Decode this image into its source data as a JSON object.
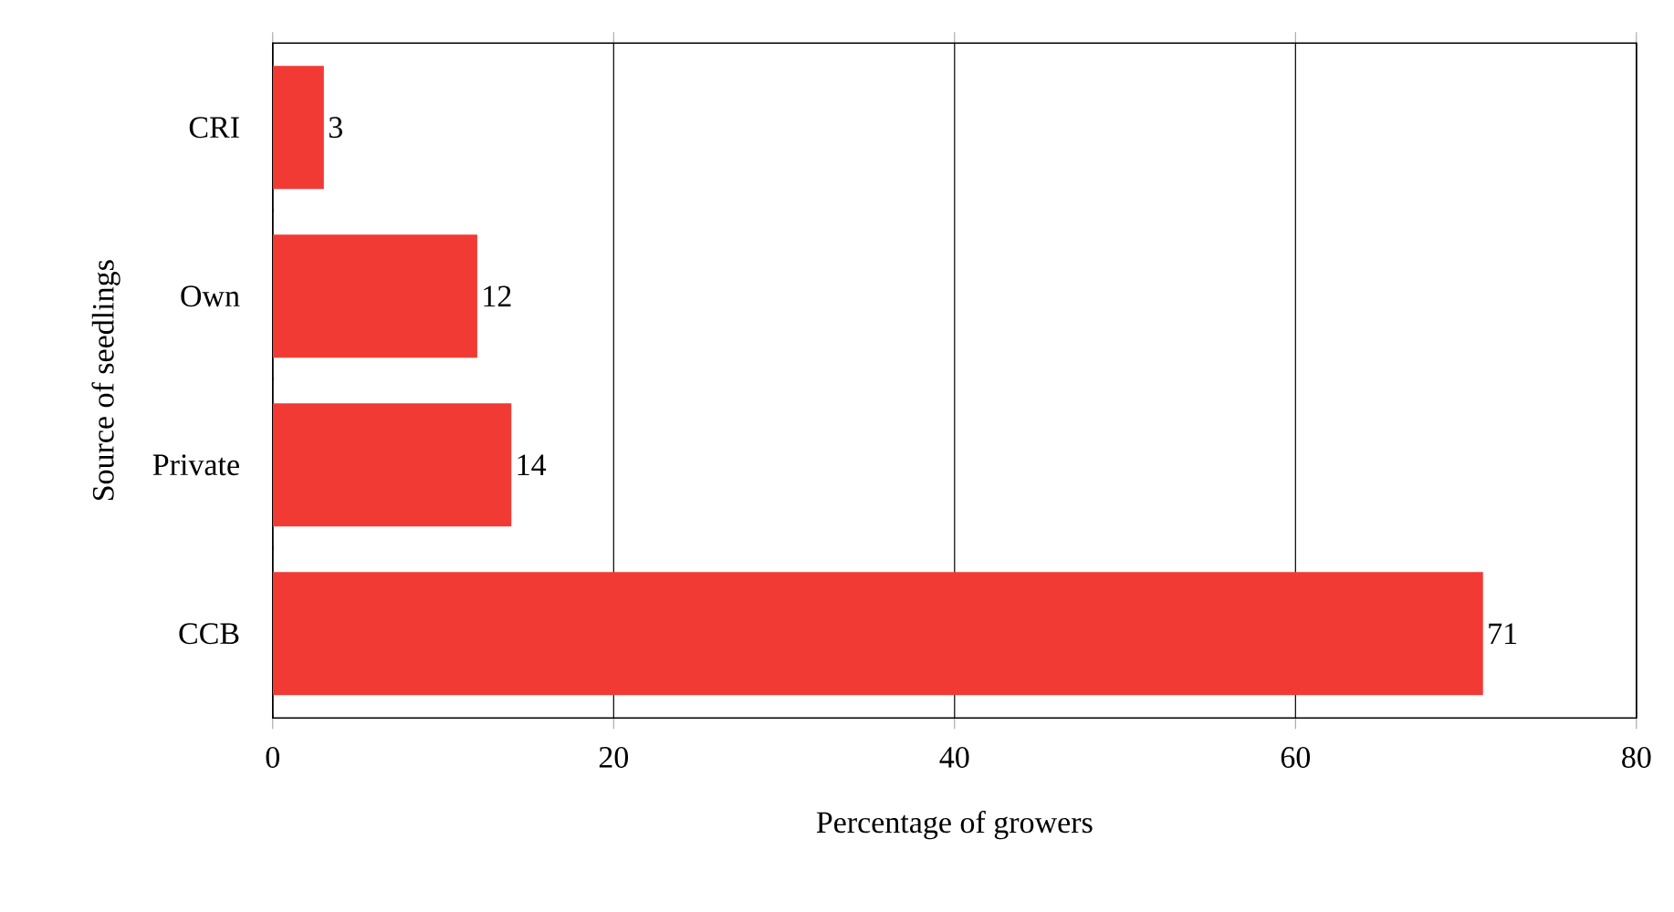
{
  "chart_data": {
    "type": "bar",
    "orientation": "horizontal",
    "xlabel": "Percentage of growers",
    "ylabel": "Source of seedlings",
    "categories": [
      "CRI",
      "Own",
      "Private",
      "CCB"
    ],
    "values": [
      3,
      12,
      14,
      71
    ],
    "color": "#f23a35",
    "xlim": [
      0,
      80
    ],
    "xticks": [
      0,
      20,
      40,
      60,
      80
    ],
    "grid": "x",
    "data_labels": true
  }
}
